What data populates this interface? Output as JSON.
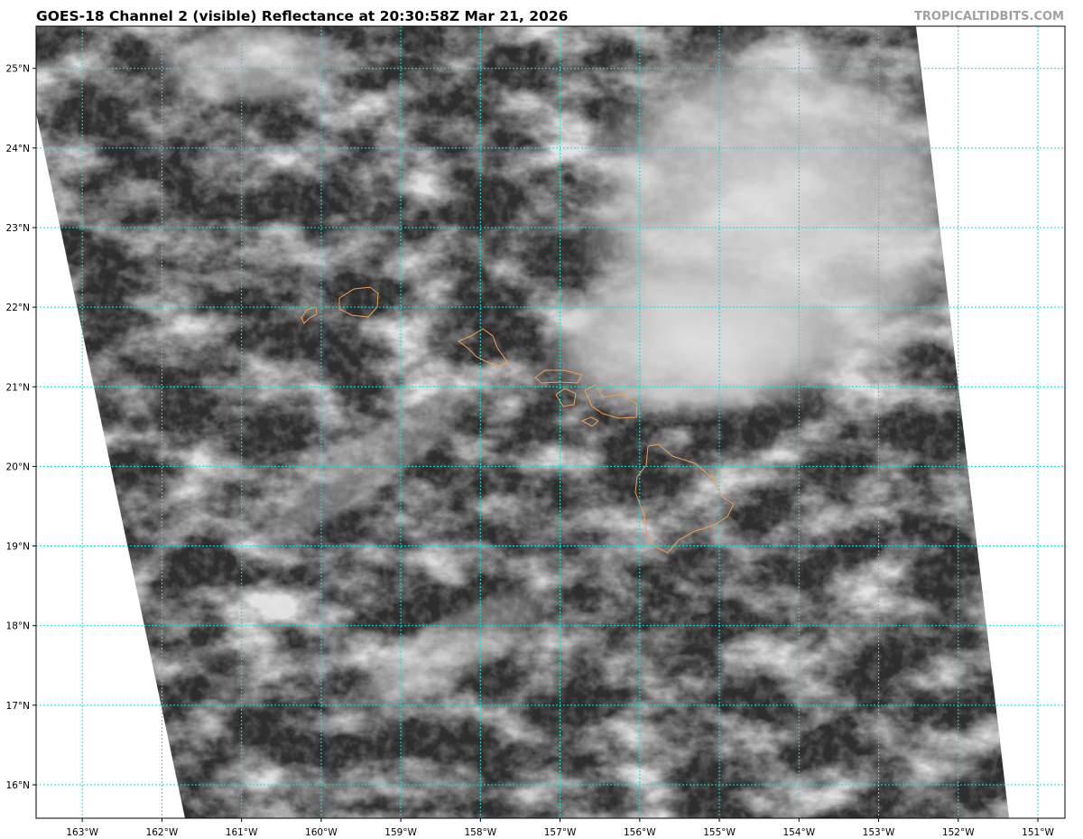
{
  "title": "GOES-18 Channel 2 (visible) Reflectance at 20:30:58Z Mar 21, 2026",
  "credit": "TROPICALTIDBITS.COM",
  "colors": {
    "gridline": "#00e5e5",
    "coastline": "#f0a050",
    "ocean_dark": "#2e2e2e",
    "no_data": "#ffffff"
  },
  "latitudes": [
    {
      "value": 25,
      "label": "25°N"
    },
    {
      "value": 24,
      "label": "24°N"
    },
    {
      "value": 23,
      "label": "23°N"
    },
    {
      "value": 22,
      "label": "22°N"
    },
    {
      "value": 21,
      "label": "21°N"
    },
    {
      "value": 20,
      "label": "20°N"
    },
    {
      "value": 19,
      "label": "19°N"
    },
    {
      "value": 18,
      "label": "18°N"
    },
    {
      "value": 17,
      "label": "17°N"
    },
    {
      "value": 16,
      "label": "16°N"
    }
  ],
  "longitudes": [
    {
      "value": -163,
      "label": "163°W"
    },
    {
      "value": -162,
      "label": "162°W"
    },
    {
      "value": -161,
      "label": "161°W"
    },
    {
      "value": -160,
      "label": "160°W"
    },
    {
      "value": -159,
      "label": "159°W"
    },
    {
      "value": -158,
      "label": "158°W"
    },
    {
      "value": -157,
      "label": "157°W"
    },
    {
      "value": -156,
      "label": "156°W"
    },
    {
      "value": -155,
      "label": "155°W"
    },
    {
      "value": -154,
      "label": "154°W"
    },
    {
      "value": -153,
      "label": "153°W"
    },
    {
      "value": -152,
      "label": "152°W"
    },
    {
      "value": -151,
      "label": "151°W"
    }
  ],
  "extent": {
    "lon_min": -163.58,
    "lon_max": -150.66,
    "lat_min": 15.58,
    "lat_max": 25.53
  }
}
